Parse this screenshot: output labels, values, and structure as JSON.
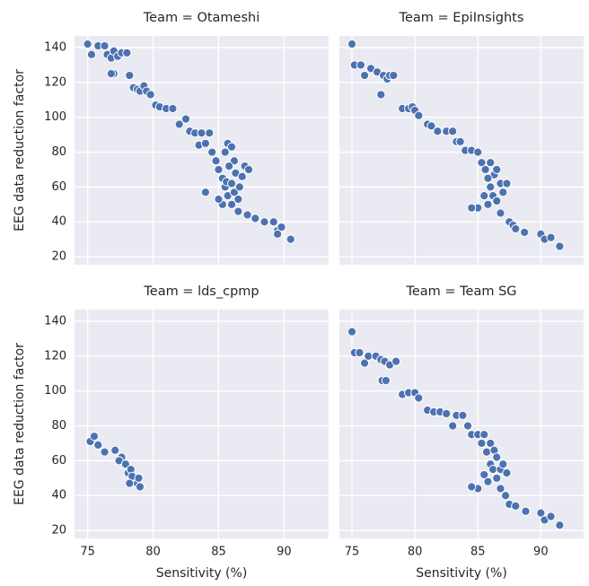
{
  "chart_data": [
    {
      "type": "scatter",
      "title": "Team = Otameshi",
      "y_label": "EEG data reduction factor",
      "color": "#4c72b0",
      "grid": true,
      "xlim": [
        74,
        93.4
      ],
      "ylim": [
        15.4,
        146.7
      ],
      "xticks": [
        75,
        80,
        85,
        90
      ],
      "yticks": [
        20,
        40,
        60,
        80,
        100,
        120,
        140
      ],
      "x": [
        75,
        75.3,
        75.8,
        76.3,
        76.5,
        76.8,
        77,
        77.3,
        77.6,
        78,
        77,
        76.8,
        78.2,
        78.5,
        78.8,
        79,
        79.3,
        79.5,
        79.8,
        80.2,
        80.5,
        81,
        81.5,
        82,
        82.5,
        82.8,
        83.2,
        83.7,
        84.3,
        83.5,
        84,
        84.5,
        84.8,
        85,
        85.3,
        85.5,
        85.7,
        86,
        86.2,
        86.3,
        85.8,
        85.5,
        85.7,
        86,
        85.3,
        85.6,
        86,
        86.2,
        86.5,
        86.6,
        86.8,
        87,
        87.3,
        86.5,
        87.2,
        87.8,
        88.5,
        89.2,
        89.5,
        89.8,
        90.5,
        89.5,
        84,
        85
      ],
      "y": [
        142,
        136,
        141,
        141,
        136,
        134,
        138,
        135,
        137,
        137,
        125,
        125,
        124,
        117,
        116,
        115,
        118,
        115,
        113,
        107,
        106,
        105,
        105,
        96,
        99,
        92,
        91,
        91,
        91,
        84,
        85,
        80,
        75,
        70,
        65,
        80,
        85,
        83,
        75,
        68,
        72,
        60,
        55,
        50,
        50,
        63,
        62,
        57,
        53,
        60,
        66,
        72,
        70,
        46,
        44,
        42,
        40,
        40,
        35,
        37,
        30,
        33,
        57,
        53
      ]
    },
    {
      "type": "scatter",
      "title": "Team = EpiInsights",
      "color": "#4c72b0",
      "grid": true,
      "xlim": [
        74,
        93.4
      ],
      "ylim": [
        15.4,
        146.7
      ],
      "xticks": [
        75,
        80,
        85,
        90
      ],
      "yticks": [
        20,
        40,
        60,
        80,
        100,
        120,
        140
      ],
      "x": [
        75,
        75.2,
        75.7,
        76,
        76.5,
        77,
        77.5,
        77.8,
        78,
        78.3,
        77.3,
        79,
        79.5,
        79.8,
        80,
        80.3,
        81,
        81.3,
        81.8,
        82.5,
        83,
        83.3,
        83.6,
        84,
        84.5,
        85,
        85.3,
        85.6,
        86,
        86.3,
        85.8,
        86,
        86.2,
        85.5,
        85.8,
        86.5,
        86.8,
        87,
        87.3,
        86.8,
        87.5,
        87.8,
        88,
        88.7,
        90,
        90.3,
        90.8,
        91.5,
        85,
        84.5,
        86.5
      ],
      "y": [
        142,
        130,
        130,
        124,
        128,
        126,
        124,
        122,
        124,
        124,
        113,
        105,
        105,
        106,
        104,
        101,
        96,
        95,
        92,
        92,
        92,
        86,
        86,
        81,
        81,
        80,
        74,
        70,
        74,
        67,
        65,
        60,
        55,
        55,
        50,
        52,
        62,
        57,
        62,
        45,
        40,
        38,
        36,
        34,
        33,
        30,
        31,
        26,
        48,
        48,
        70
      ]
    },
    {
      "type": "scatter",
      "title": "Team = lds_cpmp",
      "x_label": "Sensitivity (%)",
      "y_label": "EEG data reduction factor",
      "color": "#4c72b0",
      "grid": true,
      "xlim": [
        74,
        93.4
      ],
      "ylim": [
        15.4,
        146.7
      ],
      "xticks": [
        75,
        80,
        85,
        90
      ],
      "yticks": [
        20,
        40,
        60,
        80,
        100,
        120,
        140
      ],
      "x": [
        75.2,
        75.5,
        75.8,
        76.3,
        77.1,
        77.6,
        77.4,
        77.9,
        78.1,
        78.3,
        78.4,
        78.8,
        78.9,
        79,
        78.2
      ],
      "y": [
        71,
        74,
        69,
        65,
        66,
        62,
        60,
        58,
        53,
        55,
        51,
        47,
        50,
        45,
        47
      ]
    },
    {
      "type": "scatter",
      "title": "Team = Team SG",
      "x_label": "Sensitivity (%)",
      "color": "#4c72b0",
      "grid": true,
      "xlim": [
        74,
        93.4
      ],
      "ylim": [
        15.4,
        146.7
      ],
      "xticks": [
        75,
        80,
        85,
        90
      ],
      "yticks": [
        20,
        40,
        60,
        80,
        100,
        120,
        140
      ],
      "x": [
        75,
        75.2,
        75.6,
        76,
        76.3,
        76.9,
        77.3,
        77.6,
        78,
        78.5,
        77.4,
        77.7,
        79,
        79.5,
        80,
        80.3,
        81,
        81.5,
        82,
        82.5,
        83,
        83.3,
        83.8,
        84.2,
        84.5,
        85,
        85.5,
        85.3,
        85.7,
        86,
        86.3,
        86.5,
        86,
        86.2,
        85.5,
        85.8,
        86.5,
        86.8,
        87,
        87.3,
        86.8,
        87.2,
        87.5,
        88,
        88.8,
        90,
        90.3,
        90.8,
        91.5,
        85,
        84.5
      ],
      "y": [
        134,
        122,
        122,
        116,
        120,
        120,
        118,
        117,
        115,
        117,
        106,
        106,
        98,
        99,
        99,
        96,
        89,
        88,
        88,
        87,
        80,
        86,
        86,
        80,
        75,
        75,
        75,
        70,
        65,
        70,
        66,
        62,
        58,
        55,
        52,
        48,
        50,
        55,
        58,
        53,
        44,
        40,
        35,
        34,
        31,
        30,
        26,
        28,
        23,
        44,
        45
      ]
    }
  ]
}
